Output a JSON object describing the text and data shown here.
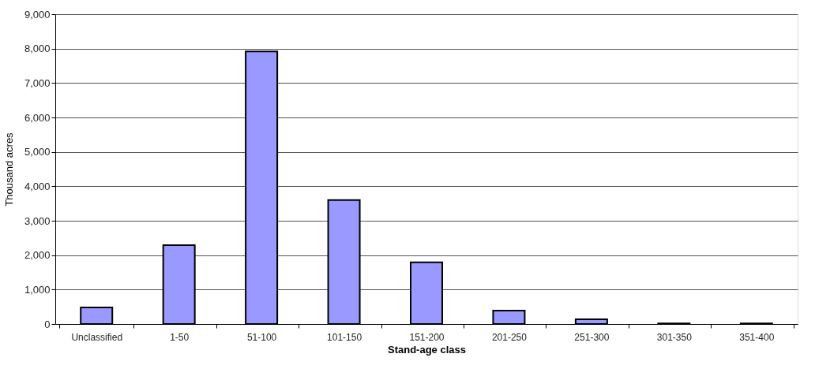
{
  "chart_data": {
    "type": "bar",
    "xlabel": "Stand-age class",
    "ylabel": "Thousand acres",
    "categories": [
      "Unclassified",
      "1-50",
      "51-100",
      "101-150",
      "151-200",
      "201-250",
      "251-300",
      "301-350",
      "351-400"
    ],
    "values": [
      480,
      2290,
      7920,
      3600,
      1790,
      390,
      140,
      20,
      20
    ],
    "color": "#9999ff",
    "ylim": [
      0,
      9000
    ],
    "yticks": [
      {
        "value": 0,
        "label": "0"
      },
      {
        "value": 1000,
        "label": "1,000"
      },
      {
        "value": 2000,
        "label": "2,000"
      },
      {
        "value": 3000,
        "label": "3,000"
      },
      {
        "value": 4000,
        "label": "4,000"
      },
      {
        "value": 5000,
        "label": "5,000"
      },
      {
        "value": 6000,
        "label": "6,000"
      },
      {
        "value": 7000,
        "label": "7,000"
      },
      {
        "value": 8000,
        "label": "8,000"
      },
      {
        "value": 9000,
        "label": "9,000"
      }
    ],
    "grid": "y"
  }
}
